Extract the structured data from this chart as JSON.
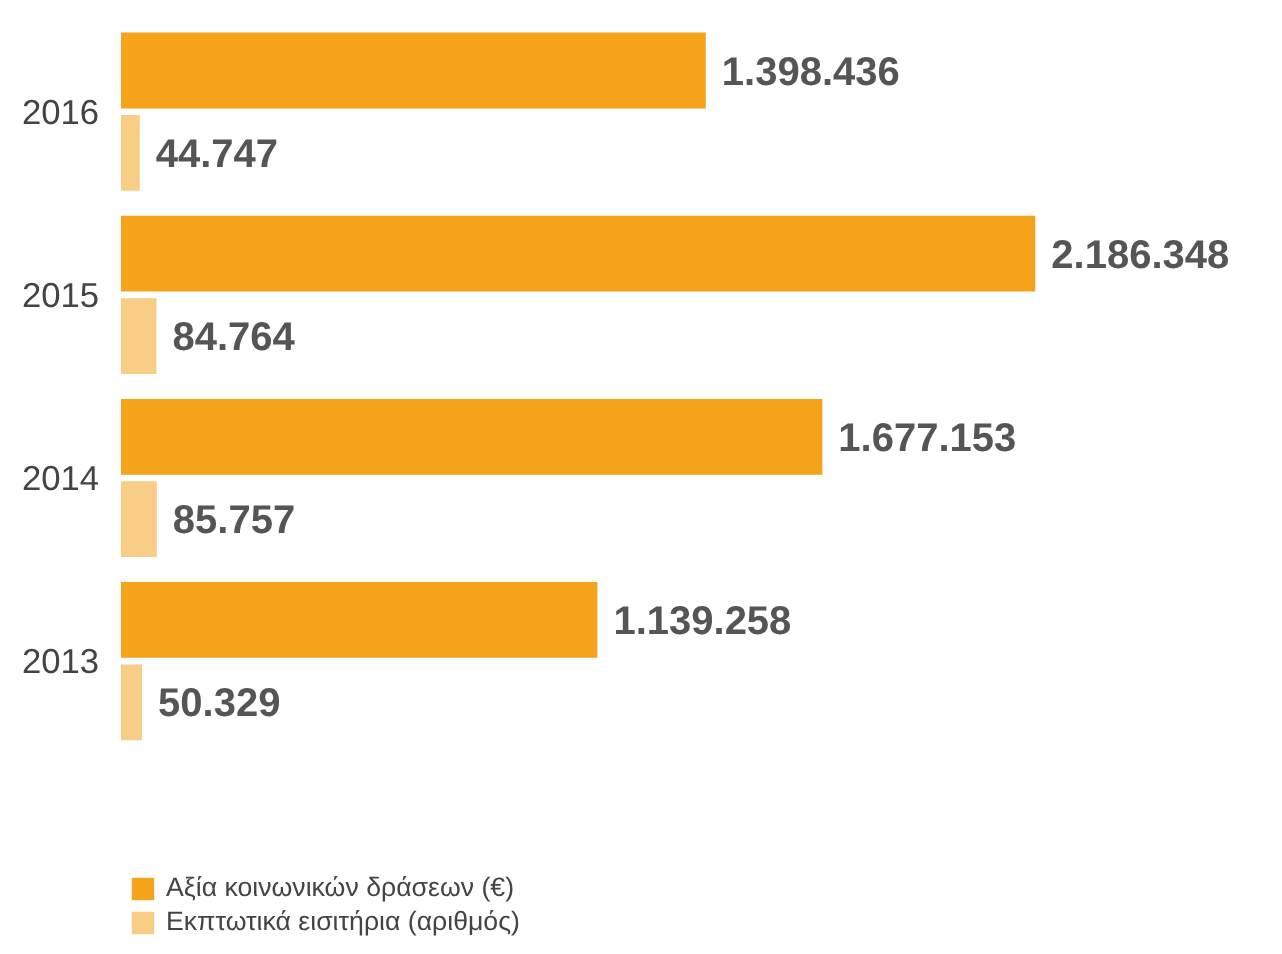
{
  "chart_data": {
    "type": "bar",
    "orientation": "horizontal",
    "categories": [
      "2016",
      "2015",
      "2014",
      "2013"
    ],
    "tick_labels": "y",
    "grid": false,
    "legend": "bottom left",
    "series": [
      {
        "name": "Αξία κοινωνικών δράσεων (€)",
        "color": "#f5a31a",
        "values": [
          1398436,
          2186348,
          1677153,
          1139258
        ],
        "value_labels": [
          "1.398.436",
          "2.186.348",
          "1.677.153",
          "1.139.258"
        ]
      },
      {
        "name": "Εκπτωτικά εισιτήρια (αριθμός)",
        "color": "#f8cd85",
        "values": [
          44747,
          84764,
          85757,
          50329
        ],
        "value_labels": [
          "44.747",
          "84.764",
          "85.757",
          "50.329"
        ]
      }
    ]
  }
}
